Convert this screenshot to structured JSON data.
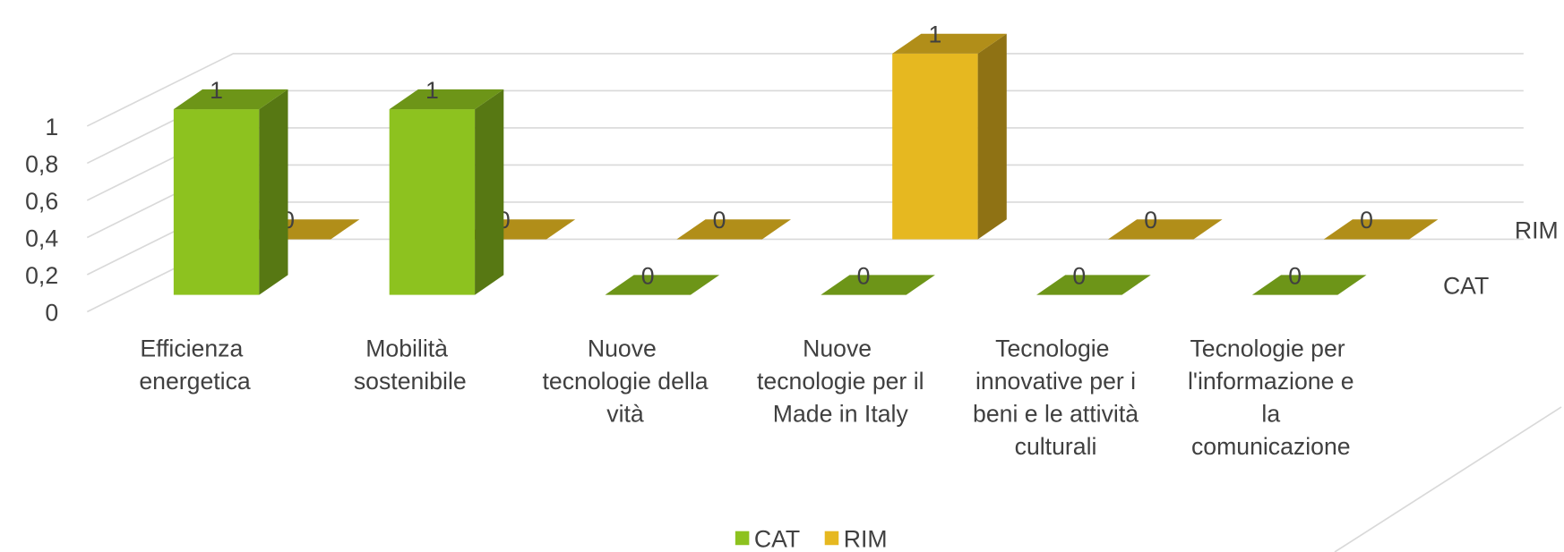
{
  "chart_data": {
    "type": "bar3d",
    "categories": [
      "Efficienza energetica",
      "Mobilità sostenibile",
      "Nuove tecnologie della vità",
      "Nuove tecnologie per il Made in Italy",
      "Tecnologie innovative per i beni e le attività culturali",
      "Tecnologie per l'informazione e la comunicazione"
    ],
    "series": [
      {
        "name": "CAT",
        "color": "#8dc21f",
        "values": [
          1,
          1,
          0,
          0,
          0,
          0
        ]
      },
      {
        "name": "RIM",
        "color": "#e6b820",
        "values": [
          0,
          0,
          0,
          1,
          0,
          0
        ]
      }
    ],
    "ylim": [
      0,
      1.4
    ],
    "yticks": [
      0,
      {
        "value": 0.2,
        "label": "0,2"
      },
      {
        "value": 0.4,
        "label": "0,4"
      },
      {
        "value": 0.6,
        "label": "0,6"
      },
      {
        "value": 0.8,
        "label": "0,8"
      },
      1
    ],
    "grid": true,
    "legend": "bottom"
  }
}
